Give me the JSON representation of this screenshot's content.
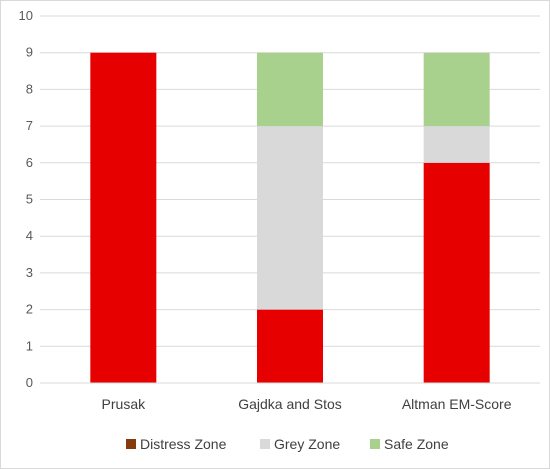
{
  "chart_data": {
    "type": "bar",
    "stacked": true,
    "categories": [
      "Prusak",
      "Gajdka and Stos",
      "Altman EM-Score"
    ],
    "series": [
      {
        "name": "Distress Zone",
        "values": [
          9,
          2,
          6
        ],
        "color": "#e60000",
        "legend_color": "#843c0c"
      },
      {
        "name": "Grey Zone",
        "values": [
          0,
          5,
          1
        ],
        "color": "#d9d9d9",
        "legend_color": "#d9d9d9"
      },
      {
        "name": "Safe Zone",
        "values": [
          0,
          2,
          2
        ],
        "color": "#a9d18e",
        "legend_color": "#a9d18e"
      }
    ],
    "ylim": [
      0,
      10
    ],
    "yticks": [
      "0",
      "1",
      "2",
      "3",
      "4",
      "5",
      "6",
      "7",
      "8",
      "9",
      "10"
    ],
    "grid": true,
    "legend_position": "bottom",
    "title": "",
    "xlabel": "",
    "ylabel": ""
  }
}
